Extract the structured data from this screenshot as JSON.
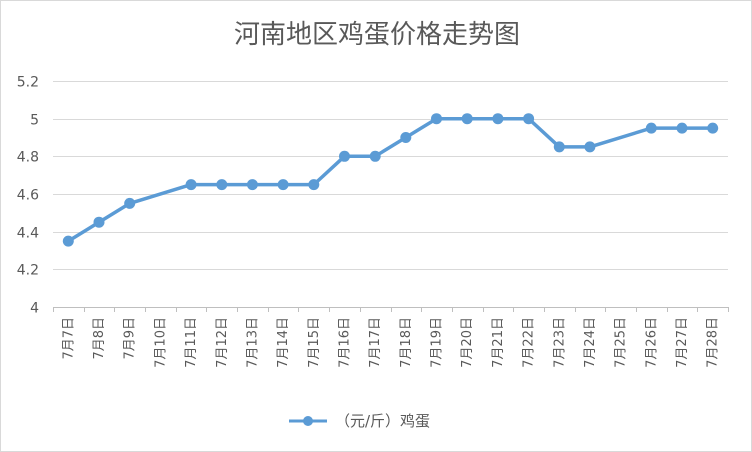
{
  "chart_data": {
    "type": "line",
    "title": "河南地区鸡蛋价格走势图",
    "xlabel": "",
    "ylabel": "",
    "categories": [
      "7月7日",
      "7月8日",
      "7月9日",
      "7月10日",
      "7月11日",
      "7月12日",
      "7月13日",
      "7月14日",
      "7月15日",
      "7月16日",
      "7月17日",
      "7月18日",
      "7月19日",
      "7月20日",
      "7月21日",
      "7月22日",
      "7月23日",
      "7月24日",
      "7月25日",
      "7月26日",
      "7月27日",
      "7月28日"
    ],
    "series": [
      {
        "name": "（元/斤）鸡蛋",
        "color": "#5b9bd5",
        "values": [
          4.35,
          4.45,
          4.55,
          null,
          4.65,
          4.65,
          4.65,
          4.65,
          4.65,
          4.8,
          4.8,
          4.9,
          5.0,
          5.0,
          5.0,
          5.0,
          4.85,
          4.85,
          null,
          4.95,
          4.95,
          4.95
        ]
      }
    ],
    "ylim": [
      4,
      5.2
    ],
    "yticks": [
      4,
      4.2,
      4.4,
      4.6,
      4.8,
      5,
      5.2
    ],
    "ytick_labels": [
      "4",
      "4.2",
      "4.4",
      "4.6",
      "4.8",
      "5",
      "5.2"
    ],
    "grid": true,
    "legend_position": "bottom"
  }
}
